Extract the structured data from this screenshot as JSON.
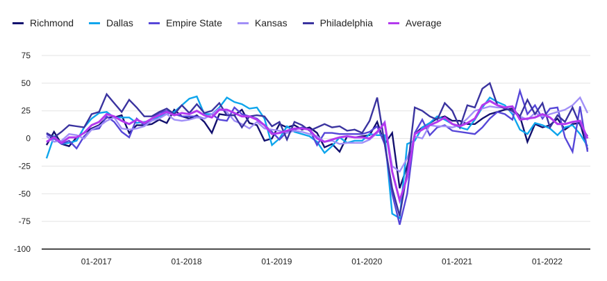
{
  "chart_data": {
    "type": "line",
    "title": "",
    "xlabel": "",
    "ylabel": "",
    "x_start": "2016-06",
    "x_frequency": "monthly",
    "ylim": [
      -100,
      75
    ],
    "yticks": [
      75,
      50,
      25,
      0,
      -25,
      -50,
      -75,
      -100
    ],
    "xticks": [
      "01-2017",
      "01-2018",
      "01-2019",
      "01-2020",
      "01-2021",
      "01-2022"
    ],
    "grid": true,
    "legend_position": "top-left",
    "series": [
      {
        "name": "Richmond",
        "color": "#12106e",
        "values": [
          -6,
          6,
          -5,
          -7,
          1,
          5,
          9,
          12,
          19,
          19,
          21,
          5,
          12,
          12,
          13,
          17,
          14,
          26,
          20,
          18,
          21,
          15,
          5,
          22,
          21,
          21,
          26,
          14,
          12,
          -2,
          0,
          13,
          10,
          12,
          8,
          10,
          5,
          -8,
          -5,
          -12,
          2,
          1,
          2,
          3,
          15,
          -5,
          5,
          -45,
          -25,
          4,
          10,
          14,
          18,
          20,
          16,
          16,
          13,
          13,
          18,
          22,
          24,
          26,
          27,
          20,
          -3,
          13,
          10,
          12,
          18,
          8,
          13,
          14,
          -10
        ]
      },
      {
        "name": "Dallas",
        "color": "#0ea5ec",
        "values": [
          -18,
          2,
          -5,
          -4,
          -2,
          10,
          18,
          23,
          24,
          19,
          19,
          19,
          14,
          15,
          16,
          20,
          22,
          24,
          30,
          36,
          38,
          22,
          22,
          28,
          37,
          33,
          31,
          27,
          28,
          18,
          -6,
          0,
          11,
          6,
          4,
          2,
          -3,
          -13,
          -7,
          1,
          -4,
          -2,
          -2,
          4,
          3,
          3,
          -68,
          -72,
          -5,
          -2,
          10,
          14,
          20,
          17,
          13,
          10,
          8,
          17,
          28,
          37,
          33,
          30,
          22,
          8,
          4,
          14,
          12,
          9,
          3,
          10,
          12,
          4,
          -7
        ]
      },
      {
        "name": "Empire State",
        "color": "#5646d8",
        "values": [
          4,
          0,
          -5,
          -2,
          -9,
          2,
          8,
          9,
          20,
          15,
          6,
          1,
          18,
          12,
          18,
          23,
          25,
          22,
          20,
          20,
          20,
          18,
          22,
          17,
          16,
          28,
          22,
          20,
          18,
          12,
          6,
          -1,
          6,
          8,
          10,
          8,
          -6,
          5,
          5,
          4,
          4,
          4,
          4,
          6,
          11,
          -5,
          -50,
          -78,
          -50,
          5,
          17,
          3,
          10,
          12,
          7,
          6,
          5,
          4,
          10,
          18,
          24,
          22,
          17,
          43,
          22,
          30,
          18,
          27,
          28,
          1,
          -12,
          29,
          -12
        ]
      },
      {
        "name": "Kansas",
        "color": "#a18ff7",
        "values": [
          2,
          -3,
          -2,
          4,
          3,
          0,
          8,
          11,
          16,
          19,
          9,
          8,
          9,
          11,
          16,
          18,
          22,
          17,
          16,
          17,
          19,
          18,
          22,
          27,
          24,
          16,
          13,
          9,
          15,
          9,
          8,
          7,
          5,
          7,
          6,
          4,
          2,
          -3,
          -2,
          -5,
          -4,
          -4,
          -4,
          -1,
          5,
          15,
          -25,
          -30,
          -18,
          2,
          0,
          12,
          11,
          11,
          10,
          12,
          18,
          25,
          27,
          29,
          28,
          28,
          24,
          20,
          17,
          23,
          20,
          22,
          24,
          26,
          30,
          37,
          23
        ]
      },
      {
        "name": "Philadelphia",
        "color": "#3a339f",
        "values": [
          5,
          1,
          6,
          12,
          11,
          10,
          22,
          24,
          40,
          32,
          24,
          35,
          28,
          20,
          20,
          24,
          27,
          22,
          30,
          23,
          31,
          23,
          25,
          32,
          21,
          21,
          10,
          20,
          21,
          20,
          11,
          15,
          -1,
          15,
          12,
          7,
          10,
          13,
          10,
          11,
          7,
          8,
          5,
          16,
          37,
          -5,
          -45,
          -70,
          -30,
          28,
          25,
          20,
          17,
          32,
          25,
          10,
          30,
          28,
          45,
          50,
          30,
          27,
          25,
          20,
          35,
          22,
          32,
          10,
          21,
          15,
          28,
          12,
          2
        ]
      },
      {
        "name": "Average",
        "color": "#b339ee",
        "values": [
          -3,
          1,
          -4,
          1,
          1,
          5,
          12,
          15,
          22,
          20,
          16,
          13,
          17,
          14,
          18,
          21,
          24,
          21,
          23,
          22,
          25,
          21,
          19,
          26,
          26,
          23,
          20,
          20,
          17,
          12,
          4,
          5,
          7,
          9,
          9,
          8,
          0,
          -3,
          -1,
          1,
          2,
          1,
          1,
          0,
          6,
          14,
          -30,
          -56,
          -35,
          4,
          8,
          12,
          15,
          19,
          13,
          11,
          14,
          18,
          30,
          34,
          30,
          28,
          29,
          17,
          18,
          19,
          22,
          19,
          13,
          13,
          15,
          16,
          0
        ]
      }
    ]
  }
}
